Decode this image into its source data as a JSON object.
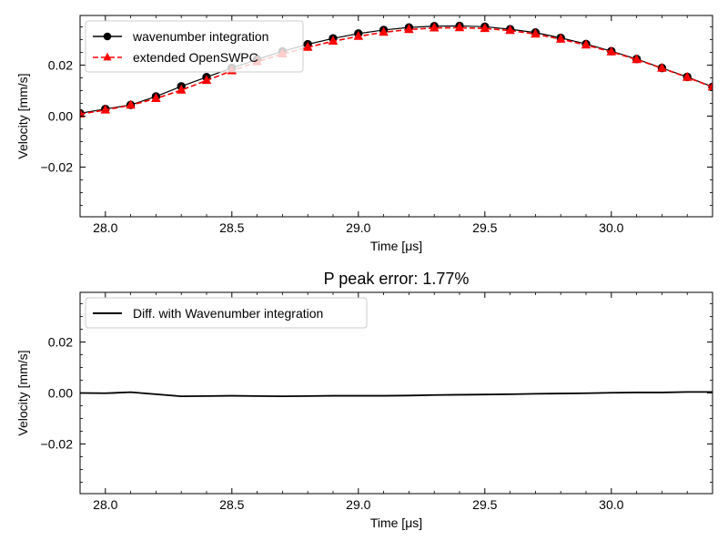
{
  "chart_data": [
    {
      "type": "line",
      "title": "",
      "xlabel": "Time [μs]",
      "ylabel": "Velocity [mm/s]",
      "xlim": [
        27.9,
        30.4
      ],
      "ylim": [
        -0.0395,
        0.0395
      ],
      "xticks": [
        28.0,
        28.5,
        29.0,
        29.5,
        30.0
      ],
      "xtick_labels": [
        "28.0",
        "28.5",
        "29.0",
        "29.5",
        "30.0"
      ],
      "yticks": [
        -0.02,
        0.0,
        0.02
      ],
      "ytick_labels": [
        "−0.02",
        "0.00",
        "0.02"
      ],
      "grid": false,
      "legend": "top-left",
      "x": [
        27.9,
        28.0,
        28.1,
        28.2,
        28.3,
        28.4,
        28.5,
        28.6,
        28.7,
        28.8,
        28.9,
        29.0,
        29.1,
        29.2,
        29.3,
        29.4,
        29.5,
        29.6,
        29.7,
        29.8,
        29.9,
        30.0,
        30.1,
        30.2,
        30.3,
        30.4
      ],
      "series": [
        {
          "name": "wavenumber integration",
          "color": "#000000",
          "style": "solid",
          "marker": "circle",
          "values": [
            0.0011,
            0.0028,
            0.0044,
            0.0077,
            0.0117,
            0.0153,
            0.0189,
            0.0223,
            0.0254,
            0.0282,
            0.0305,
            0.0324,
            0.0338,
            0.0348,
            0.0353,
            0.0354,
            0.0351,
            0.0341,
            0.0328,
            0.0307,
            0.0283,
            0.0255,
            0.0224,
            0.0189,
            0.0154,
            0.0115
          ]
        },
        {
          "name": "extended OpenSWPC",
          "color": "#ff0000",
          "style": "dashed",
          "marker": "triangle",
          "values": [
            0.0008,
            0.0024,
            0.0043,
            0.0069,
            0.0102,
            0.014,
            0.0178,
            0.0213,
            0.0244,
            0.027,
            0.0294,
            0.0313,
            0.0329,
            0.034,
            0.0346,
            0.0347,
            0.0344,
            0.0336,
            0.0322,
            0.0302,
            0.0279,
            0.0252,
            0.0222,
            0.0188,
            0.0152,
            0.0114
          ]
        }
      ]
    },
    {
      "type": "line",
      "title": "P peak error: 1.77%",
      "xlabel": "Time [μs]",
      "ylabel": "Velocity [mm/s]",
      "xlim": [
        27.9,
        30.4
      ],
      "ylim": [
        -0.0395,
        0.0395
      ],
      "xticks": [
        28.0,
        28.5,
        29.0,
        29.5,
        30.0
      ],
      "xtick_labels": [
        "28.0",
        "28.5",
        "29.0",
        "29.5",
        "30.0"
      ],
      "yticks": [
        -0.02,
        0.0,
        0.02
      ],
      "ytick_labels": [
        "−0.02",
        "0.00",
        "0.02"
      ],
      "grid": false,
      "legend": "top-left",
      "x": [
        27.9,
        28.0,
        28.1,
        28.2,
        28.3,
        28.4,
        28.5,
        28.6,
        28.7,
        28.8,
        28.9,
        29.0,
        29.1,
        29.2,
        29.3,
        29.4,
        29.5,
        29.6,
        29.7,
        29.8,
        29.9,
        30.0,
        30.1,
        30.2,
        30.3,
        30.4
      ],
      "series": [
        {
          "name": "Diff. with Wavenumber integration",
          "color": "#000000",
          "style": "solid",
          "marker": "none",
          "values": [
            0.0,
            -0.0001,
            0.0003,
            -0.0005,
            -0.0013,
            -0.0012,
            -0.0011,
            -0.0012,
            -0.0013,
            -0.0012,
            -0.0011,
            -0.0011,
            -0.0011,
            -0.001,
            -0.0008,
            -0.0007,
            -0.0006,
            -0.0005,
            -0.0003,
            -0.0002,
            -0.0001,
            0.0001,
            0.0002,
            0.0002,
            0.0004,
            0.0004
          ]
        }
      ]
    }
  ]
}
